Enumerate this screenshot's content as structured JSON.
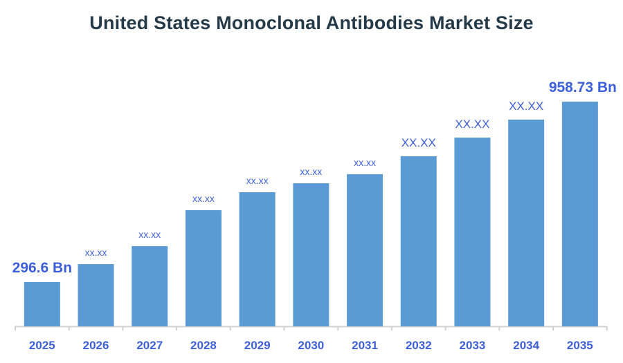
{
  "chart_data": {
    "type": "bar",
    "title": "United States Monoclonal Antibodies Market Size",
    "xlabel": "",
    "ylabel": "",
    "categories": [
      "2025",
      "2026",
      "2027",
      "2028",
      "2029",
      "2030",
      "2031",
      "2032",
      "2033",
      "2034",
      "2035"
    ],
    "values": [
      296.6,
      362.5,
      428.5,
      560.4,
      626.4,
      659.3,
      692.3,
      758.3,
      826.8,
      892.8,
      958.73
    ],
    "data_labels": [
      "296.6 Bn",
      "xx.xx",
      "xx.xx",
      "xx.xx",
      "xx.xx",
      "xx.xx",
      "xx.xx",
      "XX.XX",
      "XX.XX",
      "XX.XX",
      "958.73 Bn"
    ],
    "grid": false,
    "y_axis_visible": false,
    "colors": {
      "bar": "#5b9bd5",
      "label": "#3d5fd9",
      "title": "#253a48",
      "axis": "#d0d0d0"
    }
  }
}
